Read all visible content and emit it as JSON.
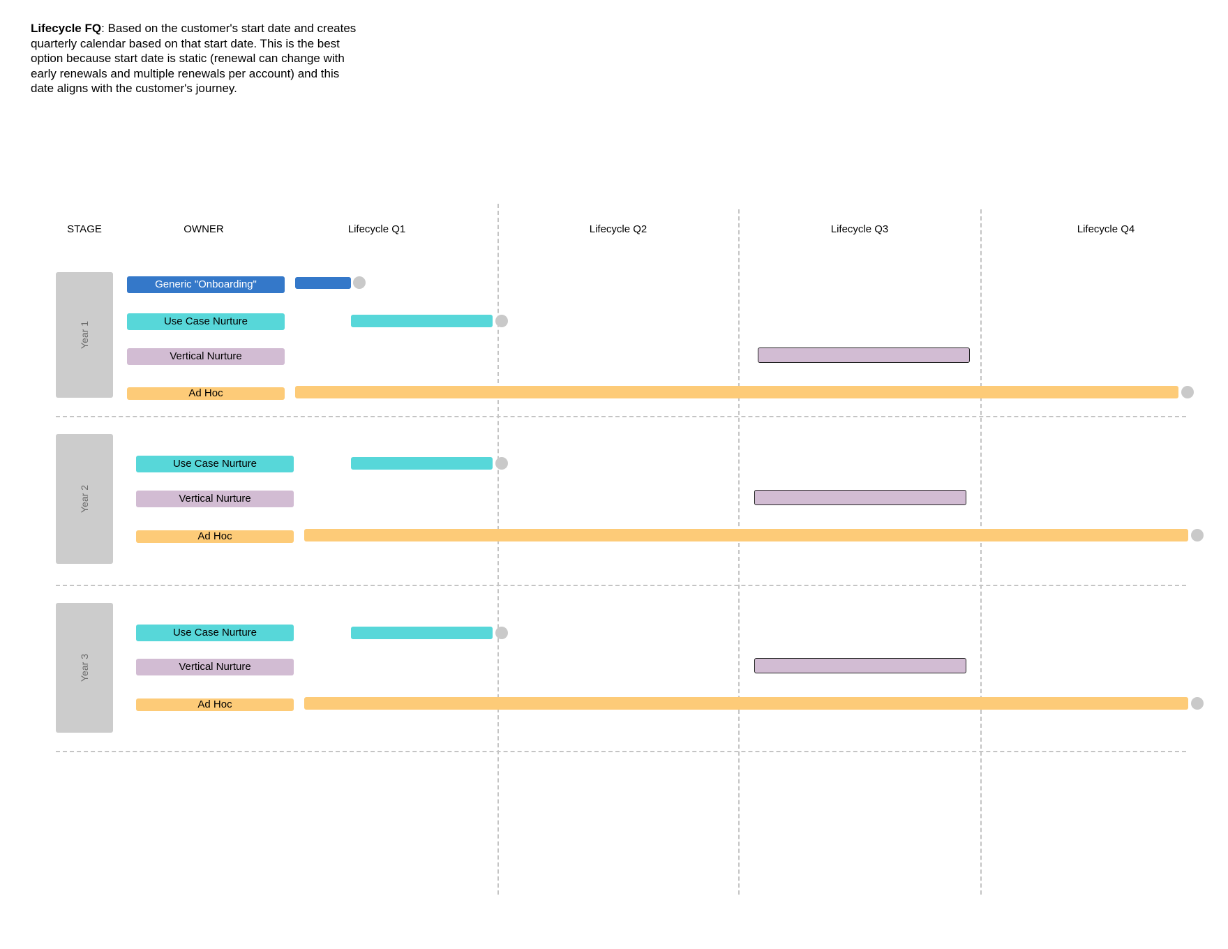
{
  "description": {
    "title": "Lifecycle FQ",
    "text": ": Based on the customer's start date and creates quarterly calendar based on that start date. This is the best option because start date is static (renewal can change with early renewals and multiple renewals per account) and this date aligns with the customer's journey."
  },
  "headers": {
    "stage": "STAGE",
    "owner": "OWNER",
    "q1": "Lifecycle Q1",
    "q2": "Lifecycle Q2",
    "q3": "Lifecycle Q3",
    "q4": "Lifecycle Q4"
  },
  "colors": {
    "onboarding": "#3478c9",
    "use_case": "#57d7d9",
    "vertical": "#d2bcd3",
    "ad_hoc": "#fdcb78",
    "stage": "#cccccc",
    "milestone": "#c9c9c9"
  },
  "years": [
    {
      "label": "Year 1",
      "owners": [
        "Generic \"Onboarding\"",
        "Use Case Nurture",
        "Vertical Nurture",
        "Ad Hoc"
      ]
    },
    {
      "label": "Year 2",
      "owners": [
        "Use Case Nurture",
        "Vertical Nurture",
        "Ad Hoc"
      ]
    },
    {
      "label": "Year 3",
      "owners": [
        "Use Case Nurture",
        "Vertical Nurture",
        "Ad Hoc"
      ]
    }
  ]
}
